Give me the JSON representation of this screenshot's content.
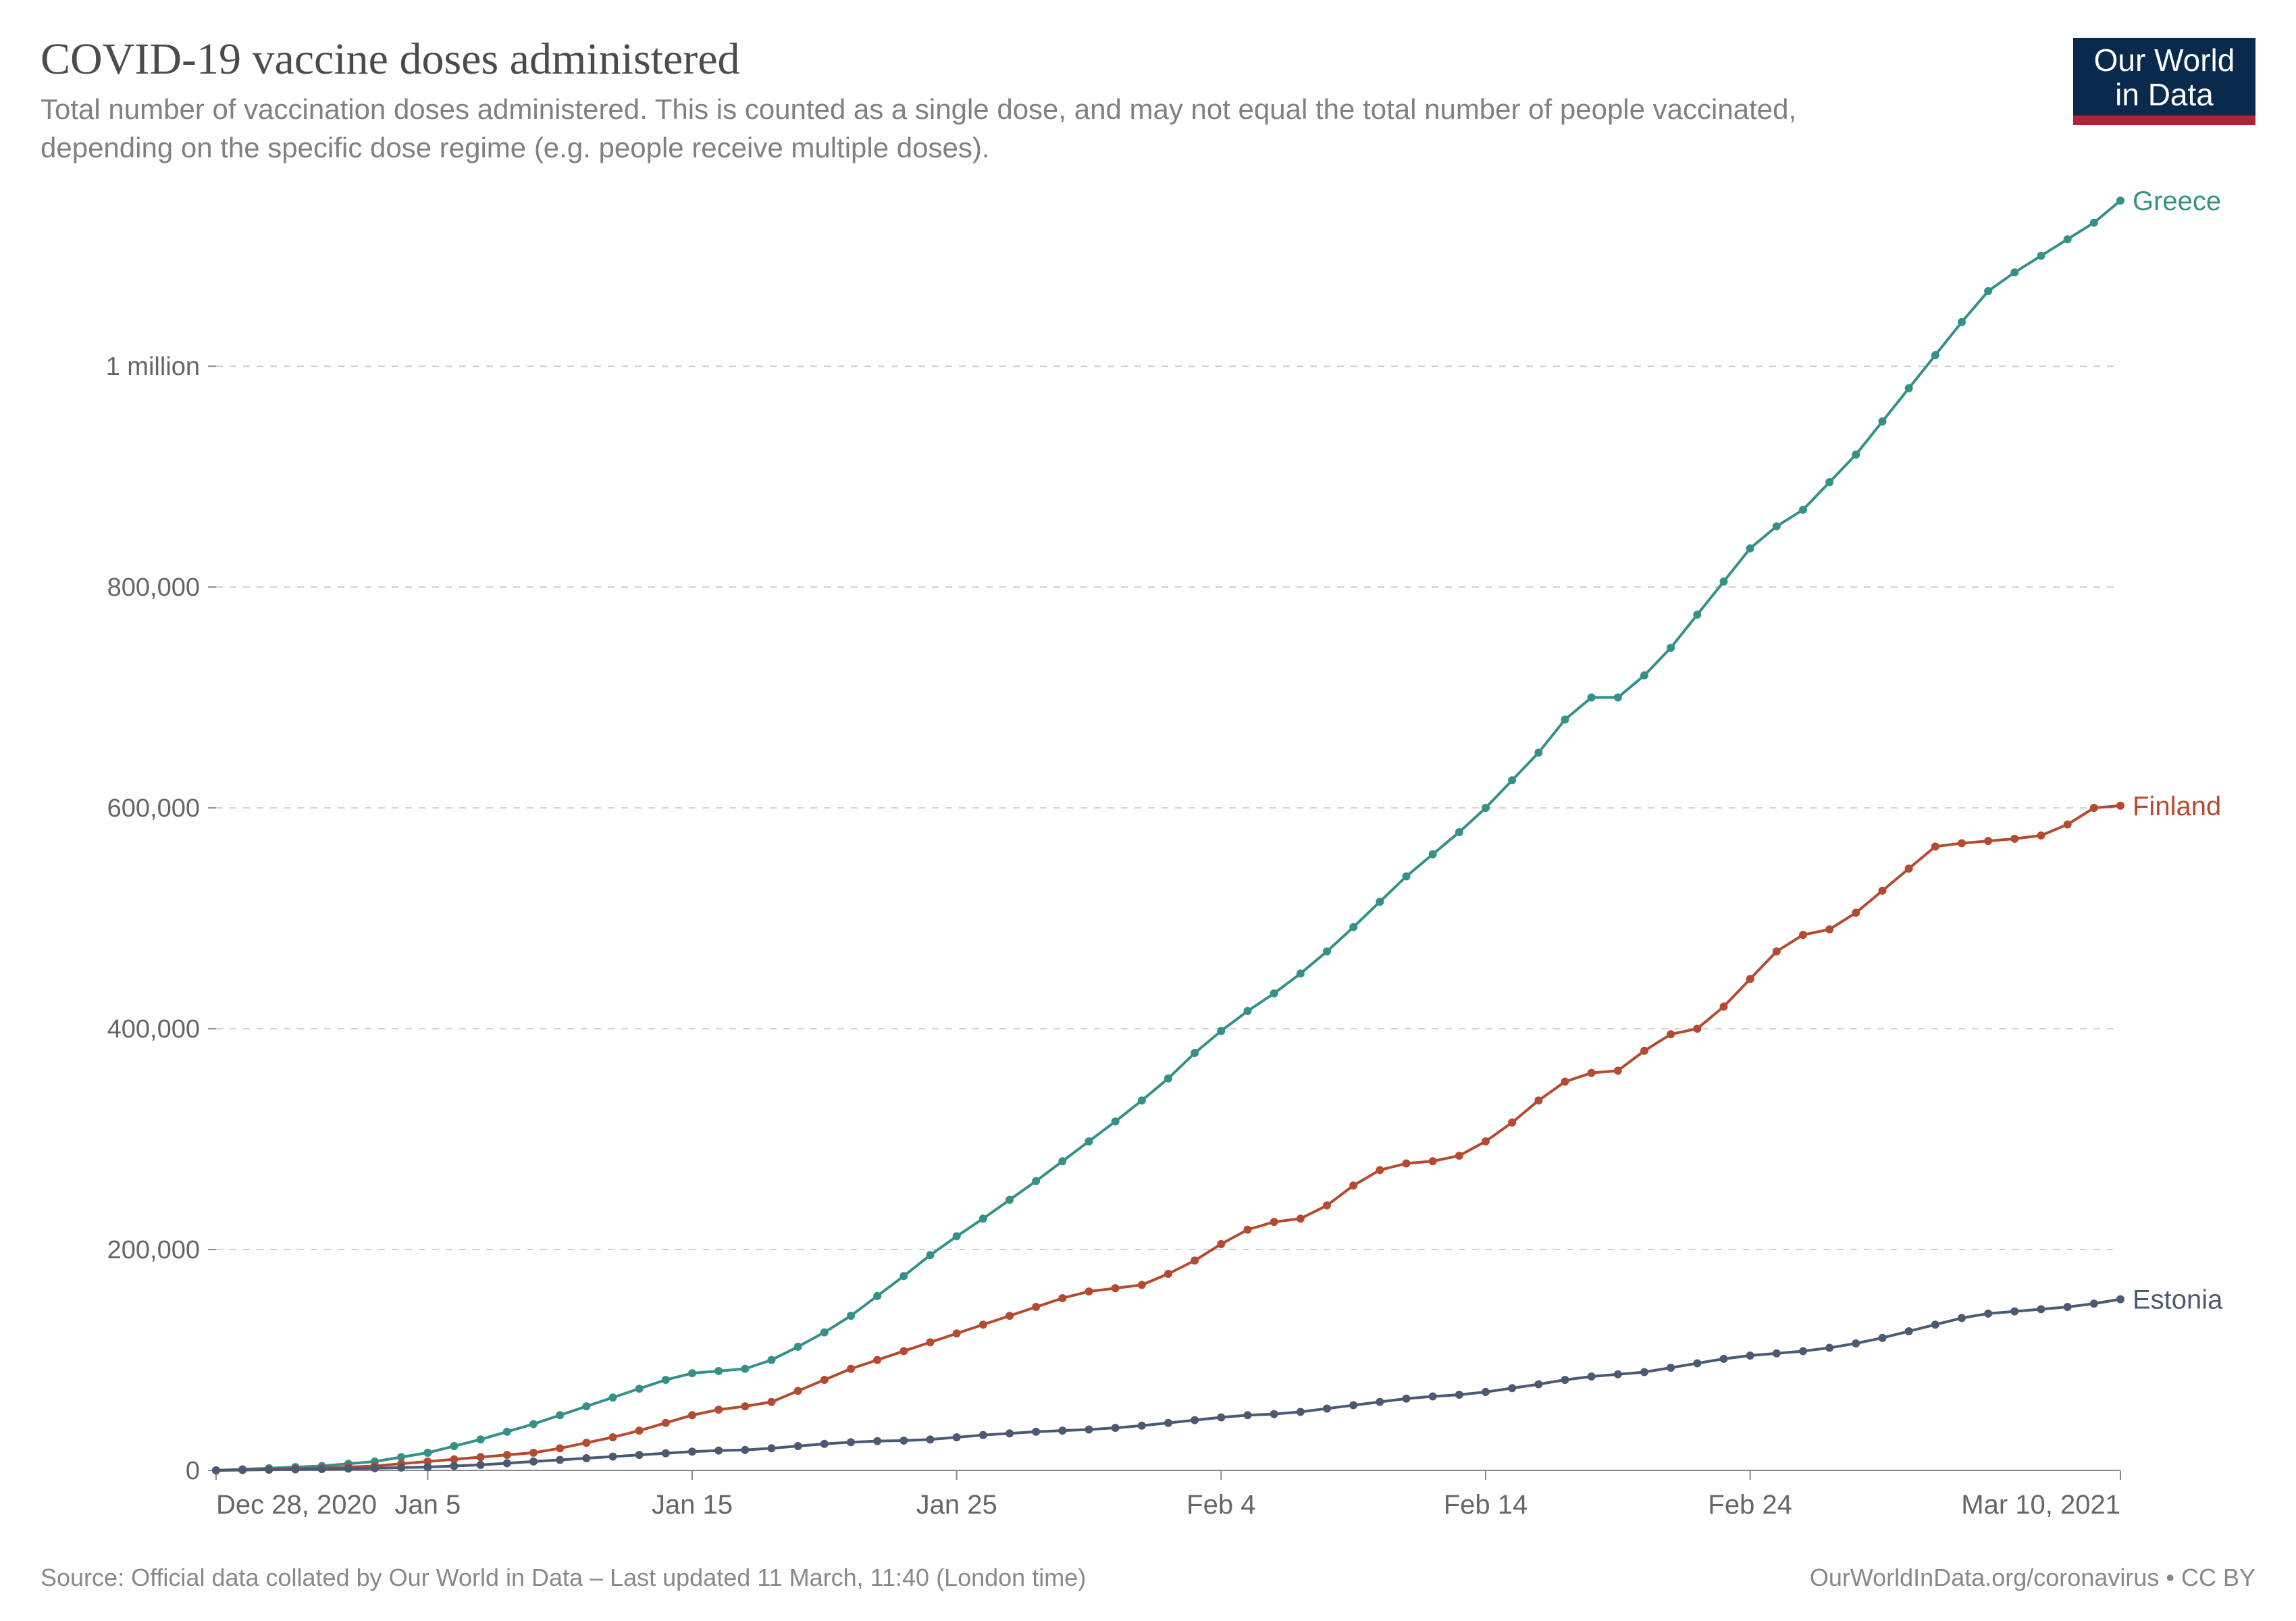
{
  "header": {
    "title": "COVID-19 vaccine doses administered",
    "subtitle": "Total number of vaccination doses administered. This is counted as a single dose, and may not equal the total number of people vaccinated, depending on the specific dose regime (e.g. people receive multiple doses).",
    "logo_line1": "Our World",
    "logo_line2": "in Data"
  },
  "footer": {
    "source": "Source: Official data collated by Our World in Data – Last updated 11 March, 11:40 (London time)",
    "attribution": "OurWorldInData.org/coronavirus • CC BY"
  },
  "chart": {
    "type": "line",
    "background_color": "#ffffff",
    "grid_color": "#cfcfcf",
    "axis_color": "#888888",
    "text_color": "#666666",
    "title_fontsize": 66,
    "subtitle_fontsize": 42,
    "tick_fontsize": 38,
    "xtick_fontsize": 40,
    "series_label_fontsize": 40,
    "footer_fontsize": 36,
    "line_width": 4,
    "marker_radius": 6,
    "x_domain": [
      0,
      72
    ],
    "y_domain": [
      0,
      1150000
    ],
    "y_ticks": [
      {
        "v": 0,
        "label": "0"
      },
      {
        "v": 200000,
        "label": "200,000"
      },
      {
        "v": 400000,
        "label": "400,000"
      },
      {
        "v": 600000,
        "label": "600,000"
      },
      {
        "v": 800000,
        "label": "800,000"
      },
      {
        "v": 1000000,
        "label": "1 million"
      }
    ],
    "x_ticks": [
      {
        "v": 0,
        "label": "Dec 28, 2020",
        "anchor": "start"
      },
      {
        "v": 8,
        "label": "Jan 5",
        "anchor": "middle"
      },
      {
        "v": 18,
        "label": "Jan 15",
        "anchor": "middle"
      },
      {
        "v": 28,
        "label": "Jan 25",
        "anchor": "middle"
      },
      {
        "v": 38,
        "label": "Feb 4",
        "anchor": "middle"
      },
      {
        "v": 48,
        "label": "Feb 14",
        "anchor": "middle"
      },
      {
        "v": 58,
        "label": "Feb 24",
        "anchor": "middle"
      },
      {
        "v": 72,
        "label": "Mar 10, 2021",
        "anchor": "end"
      }
    ],
    "series": [
      {
        "name": "Greece",
        "color": "#349187",
        "label": "Greece",
        "data": [
          [
            0,
            0
          ],
          [
            1,
            1000
          ],
          [
            2,
            2000
          ],
          [
            3,
            3000
          ],
          [
            4,
            4000
          ],
          [
            5,
            6000
          ],
          [
            6,
            8000
          ],
          [
            7,
            12000
          ],
          [
            8,
            16000
          ],
          [
            9,
            22000
          ],
          [
            10,
            28000
          ],
          [
            11,
            35000
          ],
          [
            12,
            42000
          ],
          [
            13,
            50000
          ],
          [
            14,
            58000
          ],
          [
            15,
            66000
          ],
          [
            16,
            74000
          ],
          [
            17,
            82000
          ],
          [
            18,
            88000
          ],
          [
            19,
            90000
          ],
          [
            20,
            92000
          ],
          [
            21,
            100000
          ],
          [
            22,
            112000
          ],
          [
            23,
            125000
          ],
          [
            24,
            140000
          ],
          [
            25,
            158000
          ],
          [
            26,
            176000
          ],
          [
            27,
            195000
          ],
          [
            28,
            212000
          ],
          [
            29,
            228000
          ],
          [
            30,
            245000
          ],
          [
            31,
            262000
          ],
          [
            32,
            280000
          ],
          [
            33,
            298000
          ],
          [
            34,
            316000
          ],
          [
            35,
            335000
          ],
          [
            36,
            355000
          ],
          [
            37,
            378000
          ],
          [
            38,
            398000
          ],
          [
            39,
            416000
          ],
          [
            40,
            432000
          ],
          [
            41,
            450000
          ],
          [
            42,
            470000
          ],
          [
            43,
            492000
          ],
          [
            44,
            515000
          ],
          [
            45,
            538000
          ],
          [
            46,
            558000
          ],
          [
            47,
            578000
          ],
          [
            48,
            600000
          ],
          [
            49,
            625000
          ],
          [
            50,
            650000
          ],
          [
            51,
            680000
          ],
          [
            52,
            700000
          ],
          [
            53,
            700000
          ],
          [
            54,
            720000
          ],
          [
            55,
            745000
          ],
          [
            56,
            775000
          ],
          [
            57,
            805000
          ],
          [
            58,
            835000
          ],
          [
            59,
            855000
          ],
          [
            60,
            870000
          ],
          [
            61,
            895000
          ],
          [
            62,
            920000
          ],
          [
            63,
            950000
          ],
          [
            64,
            980000
          ],
          [
            65,
            1010000
          ],
          [
            66,
            1040000
          ],
          [
            67,
            1068000
          ],
          [
            68,
            1085000
          ],
          [
            69,
            1100000
          ],
          [
            70,
            1115000
          ],
          [
            71,
            1130000
          ],
          [
            72,
            1150000
          ]
        ]
      },
      {
        "name": "Finland",
        "color": "#b44a2f",
        "label": "Finland",
        "data": [
          [
            0,
            0
          ],
          [
            1,
            500
          ],
          [
            2,
            1000
          ],
          [
            3,
            1500
          ],
          [
            4,
            2000
          ],
          [
            5,
            3000
          ],
          [
            6,
            4000
          ],
          [
            7,
            6000
          ],
          [
            8,
            8000
          ],
          [
            9,
            10000
          ],
          [
            10,
            12000
          ],
          [
            11,
            14000
          ],
          [
            12,
            16000
          ],
          [
            13,
            20000
          ],
          [
            14,
            25000
          ],
          [
            15,
            30000
          ],
          [
            16,
            36000
          ],
          [
            17,
            43000
          ],
          [
            18,
            50000
          ],
          [
            19,
            55000
          ],
          [
            20,
            58000
          ],
          [
            21,
            62000
          ],
          [
            22,
            72000
          ],
          [
            23,
            82000
          ],
          [
            24,
            92000
          ],
          [
            25,
            100000
          ],
          [
            26,
            108000
          ],
          [
            27,
            116000
          ],
          [
            28,
            124000
          ],
          [
            29,
            132000
          ],
          [
            30,
            140000
          ],
          [
            31,
            148000
          ],
          [
            32,
            156000
          ],
          [
            33,
            162000
          ],
          [
            34,
            165000
          ],
          [
            35,
            168000
          ],
          [
            36,
            178000
          ],
          [
            37,
            190000
          ],
          [
            38,
            205000
          ],
          [
            39,
            218000
          ],
          [
            40,
            225000
          ],
          [
            41,
            228000
          ],
          [
            42,
            240000
          ],
          [
            43,
            258000
          ],
          [
            44,
            272000
          ],
          [
            45,
            278000
          ],
          [
            46,
            280000
          ],
          [
            47,
            285000
          ],
          [
            48,
            298000
          ],
          [
            49,
            315000
          ],
          [
            50,
            335000
          ],
          [
            51,
            352000
          ],
          [
            52,
            360000
          ],
          [
            53,
            362000
          ],
          [
            54,
            380000
          ],
          [
            55,
            395000
          ],
          [
            56,
            400000
          ],
          [
            57,
            420000
          ],
          [
            58,
            445000
          ],
          [
            59,
            470000
          ],
          [
            60,
            485000
          ],
          [
            61,
            490000
          ],
          [
            62,
            505000
          ],
          [
            63,
            525000
          ],
          [
            64,
            545000
          ],
          [
            65,
            565000
          ],
          [
            66,
            568000
          ],
          [
            67,
            570000
          ],
          [
            68,
            572000
          ],
          [
            69,
            575000
          ],
          [
            70,
            585000
          ],
          [
            71,
            600000
          ],
          [
            72,
            602000
          ]
        ]
      },
      {
        "name": "Estonia",
        "color": "#4b5a73",
        "label": "Estonia",
        "data": [
          [
            0,
            0
          ],
          [
            1,
            300
          ],
          [
            2,
            600
          ],
          [
            3,
            900
          ],
          [
            4,
            1200
          ],
          [
            5,
            1600
          ],
          [
            6,
            2000
          ],
          [
            7,
            2500
          ],
          [
            8,
            3000
          ],
          [
            9,
            4000
          ],
          [
            10,
            5000
          ],
          [
            11,
            6500
          ],
          [
            12,
            8000
          ],
          [
            13,
            9500
          ],
          [
            14,
            11000
          ],
          [
            15,
            12500
          ],
          [
            16,
            14000
          ],
          [
            17,
            15500
          ],
          [
            18,
            17000
          ],
          [
            19,
            18000
          ],
          [
            20,
            18500
          ],
          [
            21,
            20000
          ],
          [
            22,
            22000
          ],
          [
            23,
            24000
          ],
          [
            24,
            25500
          ],
          [
            25,
            26500
          ],
          [
            26,
            27000
          ],
          [
            27,
            28000
          ],
          [
            28,
            30000
          ],
          [
            29,
            32000
          ],
          [
            30,
            33500
          ],
          [
            31,
            35000
          ],
          [
            32,
            36000
          ],
          [
            33,
            37000
          ],
          [
            34,
            38500
          ],
          [
            35,
            40500
          ],
          [
            36,
            43000
          ],
          [
            37,
            45500
          ],
          [
            38,
            48000
          ],
          [
            39,
            50000
          ],
          [
            40,
            51000
          ],
          [
            41,
            53000
          ],
          [
            42,
            56000
          ],
          [
            43,
            59000
          ],
          [
            44,
            62000
          ],
          [
            45,
            65000
          ],
          [
            46,
            67000
          ],
          [
            47,
            68500
          ],
          [
            48,
            71000
          ],
          [
            49,
            74500
          ],
          [
            50,
            78000
          ],
          [
            51,
            82000
          ],
          [
            52,
            85000
          ],
          [
            53,
            87000
          ],
          [
            54,
            89000
          ],
          [
            55,
            93000
          ],
          [
            56,
            97000
          ],
          [
            57,
            101000
          ],
          [
            58,
            104000
          ],
          [
            59,
            106000
          ],
          [
            60,
            108000
          ],
          [
            61,
            111000
          ],
          [
            62,
            115000
          ],
          [
            63,
            120000
          ],
          [
            64,
            126000
          ],
          [
            65,
            132000
          ],
          [
            66,
            138000
          ],
          [
            67,
            142000
          ],
          [
            68,
            144000
          ],
          [
            69,
            146000
          ],
          [
            70,
            148000
          ],
          [
            71,
            151000
          ],
          [
            72,
            155000
          ]
        ]
      }
    ]
  }
}
